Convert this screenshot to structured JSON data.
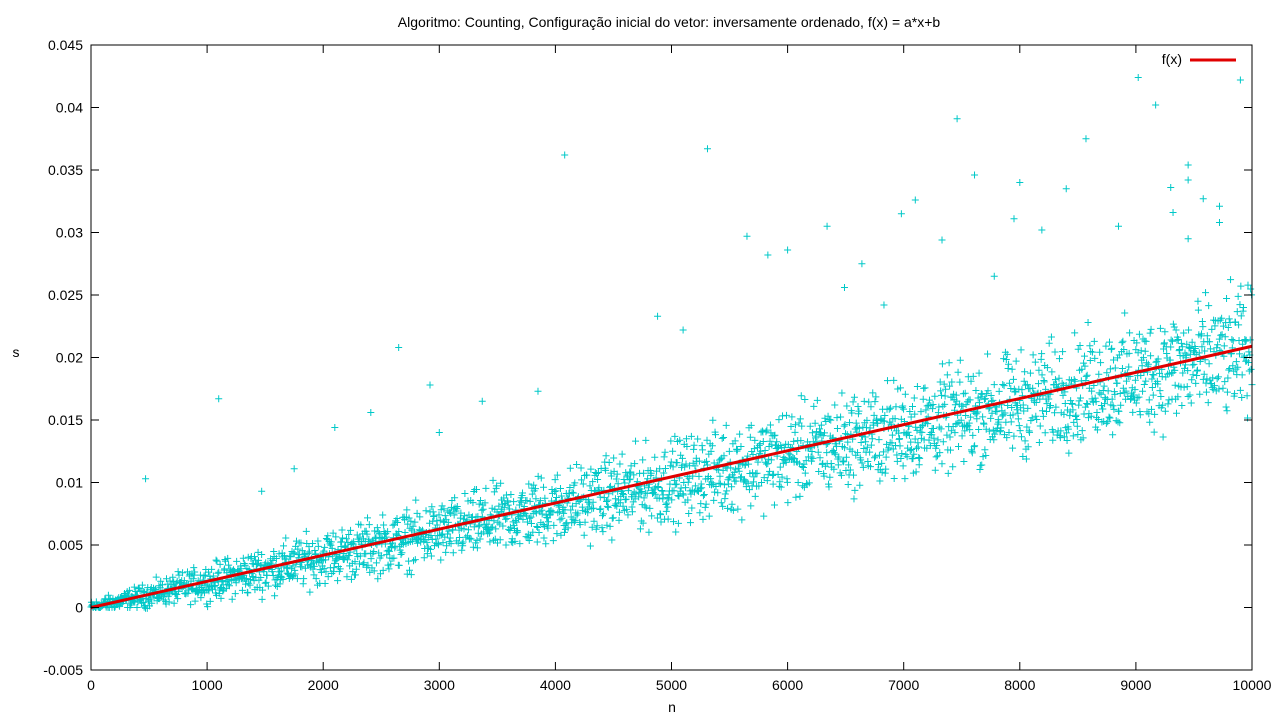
{
  "chart_data": {
    "type": "scatter",
    "title": "Algoritmo: Counting, Configuração inicial do vetor: inversamente ordenado, f(x) = a*x+b",
    "xlabel": "n",
    "ylabel": "s",
    "xlim": [
      0,
      10000
    ],
    "ylim": [
      -0.005,
      0.045
    ],
    "xticks": [
      0,
      1000,
      2000,
      3000,
      4000,
      5000,
      6000,
      7000,
      8000,
      9000,
      10000
    ],
    "xtick_labels": [
      "0",
      "1000",
      "2000",
      "3000",
      "4000",
      "5000",
      "6000",
      "7000",
      "8000",
      "9000",
      "10000"
    ],
    "yticks": [
      -0.005,
      0,
      0.005,
      0.01,
      0.015,
      0.02,
      0.025,
      0.03,
      0.035,
      0.04,
      0.045
    ],
    "ytick_labels": [
      "-0.005",
      "0",
      "0.005",
      "0.01",
      "0.015",
      "0.02",
      "0.025",
      "0.03",
      "0.035",
      "0.04",
      "0.045"
    ],
    "grid": false,
    "legend_position": "top-right",
    "colors": {
      "points": "#00c8c8",
      "fit": "#e00000",
      "axes": "#000000"
    },
    "series": [
      {
        "name": "",
        "kind": "scatter-plus",
        "trend": {
          "x": [
            0,
            1500,
            3000,
            4500,
            6000,
            7500,
            9000,
            10000
          ],
          "y": [
            0.0,
            0.003,
            0.006,
            0.009,
            0.0122,
            0.0152,
            0.0185,
            0.0205
          ]
        },
        "spread": {
          "x": [
            0,
            1500,
            3000,
            4500,
            6000,
            7500,
            9000,
            10000
          ],
          "y": [
            0.0004,
            0.0015,
            0.002,
            0.0025,
            0.003,
            0.0032,
            0.0035,
            0.004
          ]
        },
        "outliers": [
          [
            470,
            0.0103
          ],
          [
            1100,
            0.0167
          ],
          [
            1470,
            0.0093
          ],
          [
            1750,
            0.0111
          ],
          [
            2100,
            0.0144
          ],
          [
            2410,
            0.0156
          ],
          [
            2650,
            0.0208
          ],
          [
            2920,
            0.0178
          ],
          [
            3000,
            0.014
          ],
          [
            3370,
            0.0165
          ],
          [
            3850,
            0.0173
          ],
          [
            4080,
            0.0362
          ],
          [
            4880,
            0.0233
          ],
          [
            5100,
            0.0222
          ],
          [
            5310,
            0.0367
          ],
          [
            5650,
            0.0297
          ],
          [
            5830,
            0.0282
          ],
          [
            6000,
            0.0286
          ],
          [
            6340,
            0.0305
          ],
          [
            6490,
            0.0256
          ],
          [
            6640,
            0.0275
          ],
          [
            6830,
            0.0242
          ],
          [
            6980,
            0.0315
          ],
          [
            7100,
            0.0326
          ],
          [
            7330,
            0.0294
          ],
          [
            7460,
            0.0391
          ],
          [
            7610,
            0.0346
          ],
          [
            7780,
            0.0265
          ],
          [
            7950,
            0.0311
          ],
          [
            8000,
            0.034
          ],
          [
            8190,
            0.0302
          ],
          [
            8400,
            0.0335
          ],
          [
            8570,
            0.0375
          ],
          [
            8850,
            0.0305
          ],
          [
            9020,
            0.0424
          ],
          [
            9170,
            0.0402
          ],
          [
            9300,
            0.0336
          ],
          [
            9320,
            0.0316
          ],
          [
            9450,
            0.0354
          ],
          [
            9450,
            0.0342
          ],
          [
            9450,
            0.0295
          ],
          [
            9580,
            0.0327
          ],
          [
            9720,
            0.0321
          ],
          [
            9720,
            0.0308
          ],
          [
            9900,
            0.0422
          ]
        ]
      },
      {
        "name": "f(x)",
        "kind": "line",
        "x": [
          0,
          10000
        ],
        "y": [
          0.0,
          0.0209
        ]
      }
    ]
  }
}
